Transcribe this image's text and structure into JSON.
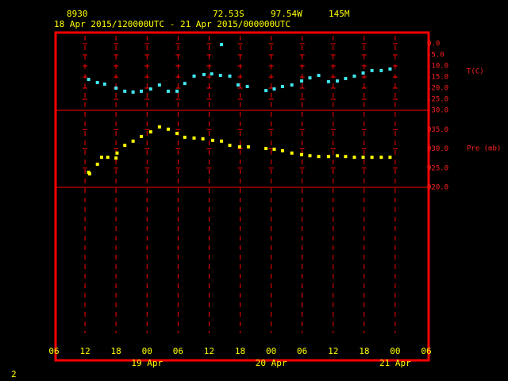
{
  "header": {
    "station": "8930",
    "lat": "72.53S",
    "lon": "97.54W",
    "elev": "145M",
    "period": "18 Apr 2015/120000UTC - 21 Apr 2015/000000UTC",
    "page": "2"
  },
  "chart_data": [
    {
      "type": "scatter",
      "y_label": "T(C)",
      "color": "#40e8f0",
      "xlim": [
        0,
        72
      ],
      "xticks": [
        {
          "value": 0,
          "label": "06"
        },
        {
          "value": 6,
          "label": "12"
        },
        {
          "value": 12,
          "label": "18"
        },
        {
          "value": 18,
          "label": "00"
        },
        {
          "value": 24,
          "label": "06"
        },
        {
          "value": 30,
          "label": "12"
        },
        {
          "value": 36,
          "label": "18"
        },
        {
          "value": 42,
          "label": "00"
        },
        {
          "value": 48,
          "label": "06"
        },
        {
          "value": 54,
          "label": "12"
        },
        {
          "value": 60,
          "label": "18"
        },
        {
          "value": 66,
          "label": "00"
        },
        {
          "value": 72,
          "label": "06"
        }
      ],
      "day_labels": [
        {
          "value": 18,
          "label": "19 Apr"
        },
        {
          "value": 42,
          "label": "20 Apr"
        },
        {
          "value": 66,
          "label": "21 Apr"
        }
      ],
      "ylim": [
        -30,
        5
      ],
      "yticks": [
        {
          "value": 0,
          "label": "0.0"
        },
        {
          "value": -5,
          "label": "-5.0"
        },
        {
          "value": -10,
          "label": "-10.0"
        },
        {
          "value": -15,
          "label": "-15.0"
        },
        {
          "value": -20,
          "label": "-20.0"
        },
        {
          "value": -25,
          "label": "-25.0"
        },
        {
          "value": -30,
          "label": "-30.0"
        }
      ],
      "x": [
        6.7,
        8.4,
        9.8,
        12.0,
        13.7,
        15.3,
        16.9,
        18.7,
        20.4,
        22.1,
        23.8,
        25.3,
        27.1,
        29.0,
        30.5,
        32.4,
        32.2,
        34.0,
        35.6,
        37.4,
        41.0,
        42.6,
        44.2,
        46.0,
        47.9,
        49.5,
        51.2,
        53.1,
        54.8,
        56.4,
        58.1,
        59.8,
        61.5,
        63.3,
        65.0
      ],
      "values": [
        -16.1,
        -17.5,
        -18.2,
        -20.0,
        -21.4,
        -21.8,
        -21.4,
        -20.4,
        -18.6,
        -21.4,
        -21.4,
        -17.9,
        -14.6,
        -13.9,
        -13.6,
        -0.4,
        -14.3,
        -14.6,
        -18.6,
        -19.3,
        -21.1,
        -20.4,
        -19.3,
        -18.6,
        -16.8,
        -15.4,
        -14.3,
        -17.1,
        -16.8,
        -15.7,
        -14.6,
        -13.2,
        -12.1,
        -12.1,
        -11.4
      ]
    },
    {
      "type": "scatter",
      "y_label": "Pre (mb)",
      "color": "#ffff00",
      "xlim": [
        0,
        72
      ],
      "ylim": [
        920,
        940
      ],
      "yticks": [
        {
          "value": 920,
          "label": "920.0"
        },
        {
          "value": 925,
          "label": "925.0"
        },
        {
          "value": 930,
          "label": "930.0"
        },
        {
          "value": 935,
          "label": "935.0"
        }
      ],
      "x": [
        6.7,
        6.9,
        8.4,
        9.2,
        10.4,
        12.0,
        12.2,
        13.7,
        15.3,
        16.9,
        18.7,
        20.4,
        22.1,
        23.8,
        25.3,
        27.1,
        28.8,
        30.7,
        32.4,
        34.0,
        35.9,
        37.6,
        41.0,
        42.6,
        44.2,
        46.0,
        47.9,
        49.5,
        51.2,
        53.1,
        54.8,
        56.4,
        58.1,
        59.8,
        61.5,
        63.3,
        65.0
      ],
      "values": [
        923.9,
        923.5,
        926.0,
        927.8,
        927.8,
        927.6,
        928.9,
        930.9,
        932.0,
        933.2,
        934.4,
        935.7,
        935.1,
        934.0,
        933.0,
        932.8,
        932.6,
        932.2,
        932.0,
        930.9,
        930.5,
        930.5,
        930.1,
        929.9,
        929.5,
        928.9,
        928.5,
        928.2,
        928.0,
        928.0,
        928.2,
        928.0,
        927.8,
        927.8,
        927.8,
        927.8,
        927.8
      ]
    }
  ]
}
